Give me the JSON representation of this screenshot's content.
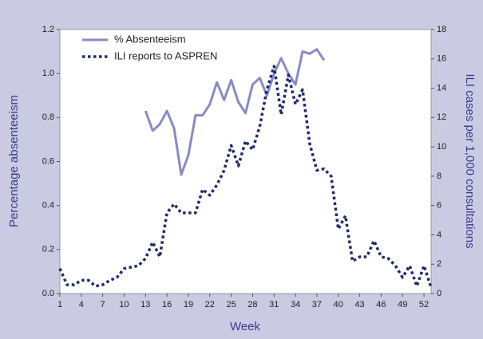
{
  "chart_data": {
    "type": "line",
    "xlabel": "Week",
    "ylabel": "Percentage absenteeism",
    "y2label": "ILI cases per 1,000 consultations",
    "xlim": [
      1,
      53
    ],
    "xticks": [
      1,
      4,
      7,
      10,
      13,
      16,
      19,
      22,
      25,
      28,
      31,
      34,
      37,
      40,
      43,
      46,
      49,
      52
    ],
    "ylim": [
      0,
      1.2
    ],
    "yticks": [
      {
        "value": 0,
        "label": "0.0"
      },
      0.2,
      0.4,
      0.6,
      0.8,
      {
        "value": 1,
        "label": "1.0"
      },
      1.2
    ],
    "y2lim": [
      0,
      18
    ],
    "y2ticks": [
      0,
      2,
      4,
      6,
      8,
      10,
      12,
      14,
      16,
      18
    ],
    "legend": "upper left",
    "series": [
      {
        "name": "% Absenteeism",
        "color": "#8a8ac4",
        "style": "solid",
        "x": [
          13,
          14,
          15,
          16,
          17,
          18,
          19,
          20,
          21,
          22,
          23,
          24,
          25,
          26,
          27,
          28,
          29,
          30,
          31,
          32,
          33,
          34,
          35,
          36,
          37,
          38
        ],
        "values": [
          0.83,
          0.74,
          0.77,
          0.83,
          0.75,
          0.54,
          0.63,
          0.81,
          0.81,
          0.86,
          0.96,
          0.88,
          0.97,
          0.87,
          0.82,
          0.95,
          0.98,
          0.9,
          1.0,
          1.07,
          1.0,
          0.95,
          1.1,
          1.09,
          1.11,
          1.06
        ]
      },
      {
        "name": "ILI reports to ASPREN",
        "color": "#1f2a6e",
        "style": "dotted",
        "axis": "y2",
        "x": [
          1,
          2,
          3,
          4,
          5,
          6,
          7,
          8,
          9,
          10,
          11,
          12,
          13,
          14,
          15,
          16,
          17,
          18,
          19,
          20,
          21,
          22,
          23,
          24,
          25,
          26,
          27,
          28,
          29,
          30,
          31,
          32,
          33,
          34,
          35,
          36,
          37,
          38,
          39,
          40,
          41,
          42,
          43,
          44,
          45,
          46,
          47,
          48,
          49,
          50,
          51,
          52,
          53
        ],
        "values": [
          1.7,
          0.6,
          0.6,
          0.9,
          0.9,
          0.5,
          0.6,
          0.9,
          1.1,
          1.7,
          1.8,
          1.9,
          2.4,
          3.5,
          2.5,
          5.5,
          6.1,
          5.5,
          5.5,
          5.5,
          7.1,
          6.7,
          7.4,
          8.4,
          10.1,
          8.7,
          10.4,
          9.8,
          11.4,
          13.9,
          15.5,
          12.2,
          14.9,
          12.9,
          13.9,
          10.2,
          8.4,
          8.5,
          8.0,
          4.4,
          5.3,
          2.2,
          2.5,
          2.5,
          3.6,
          2.5,
          2.4,
          1.9,
          1.1,
          1.9,
          0.5,
          1.9,
          0.4
        ]
      }
    ]
  }
}
